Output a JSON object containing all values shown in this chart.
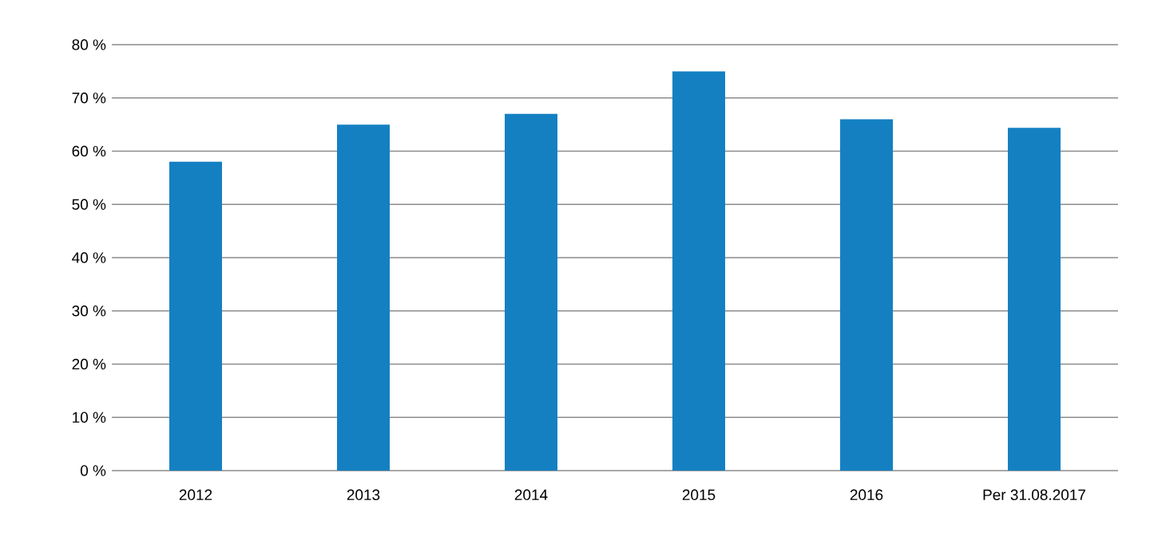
{
  "chart_data": {
    "type": "bar",
    "categories": [
      "2012",
      "2013",
      "2014",
      "2015",
      "2016",
      "Per 31.08.2017"
    ],
    "values": [
      58,
      65,
      67,
      75,
      66,
      64.4
    ],
    "color": "#1480c2",
    "ylim": [
      0,
      80
    ],
    "yticks": [
      {
        "value": 0,
        "label": "0 %"
      },
      {
        "value": 10,
        "label": "10 %"
      },
      {
        "value": 20,
        "label": "20 %"
      },
      {
        "value": 30,
        "label": "30 %"
      },
      {
        "value": 40,
        "label": "40 %"
      },
      {
        "value": 50,
        "label": "50 %"
      },
      {
        "value": 60,
        "label": "60 %"
      },
      {
        "value": 70,
        "label": "70 %"
      },
      {
        "value": 80,
        "label": "80 %"
      }
    ],
    "grid": "y"
  }
}
